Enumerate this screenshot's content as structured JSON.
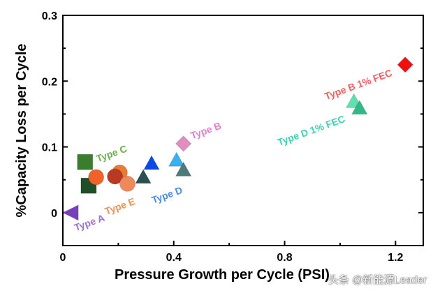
{
  "chart_data": {
    "type": "scatter",
    "title": "",
    "xlabel": "Pressure Growth per Cycle (PSI)",
    "ylabel": "%Capacity Loss per Cycle",
    "xlim": [
      0,
      1.3
    ],
    "ylim": [
      -0.05,
      0.3
    ],
    "xticks": [
      "0",
      "0.4",
      "0.8",
      "1.2"
    ],
    "xtick_values": [
      0,
      0.4,
      0.8,
      1.2
    ],
    "yticks": [
      "0",
      "0.1",
      "0.2",
      "0.3"
    ],
    "ytick_values": [
      0,
      0.1,
      0.2,
      0.3
    ],
    "grid": false,
    "points": [
      {
        "group": "Type A",
        "marker": "triangle-left",
        "color": "#7a3fc0",
        "x": 0.028,
        "y": 0.0
      },
      {
        "group": "Type C",
        "marker": "square",
        "color": "#3a7d2c",
        "x": 0.08,
        "y": 0.077
      },
      {
        "group": "Type C",
        "marker": "square",
        "color": "#1f4f27",
        "x": 0.093,
        "y": 0.041
      },
      {
        "group": "Type E",
        "marker": "circle",
        "color": "#f0622a",
        "x": 0.12,
        "y": 0.054
      },
      {
        "group": "Type E",
        "marker": "circle",
        "color": "#ee7a30",
        "x": 0.205,
        "y": 0.061
      },
      {
        "group": "Type E",
        "marker": "circle",
        "color": "#b83a22",
        "x": 0.188,
        "y": 0.055
      },
      {
        "group": "Type E",
        "marker": "circle",
        "color": "#f0895a",
        "x": 0.233,
        "y": 0.044
      },
      {
        "group": "Type D",
        "marker": "triangle-up",
        "color": "#2a5050",
        "x": 0.29,
        "y": 0.054
      },
      {
        "group": "Type D",
        "marker": "triangle-up",
        "color": "#0a4be8",
        "x": 0.32,
        "y": 0.075
      },
      {
        "group": "Type D",
        "marker": "triangle-up",
        "color": "#3ab0ee",
        "x": 0.41,
        "y": 0.08
      },
      {
        "group": "Type D",
        "marker": "triangle-up",
        "color": "#4f7a7a",
        "x": 0.435,
        "y": 0.065
      },
      {
        "group": "Type B",
        "marker": "diamond",
        "color": "#e38cc0",
        "x": 0.435,
        "y": 0.105
      },
      {
        "group": "Type D 1% FEC",
        "marker": "triangle-up",
        "color": "#5fe0b0",
        "x": 1.05,
        "y": 0.169
      },
      {
        "group": "Type D 1% FEC",
        "marker": "triangle-up",
        "color": "#2fb888",
        "x": 1.07,
        "y": 0.159
      },
      {
        "group": "Type B 1% FEC",
        "marker": "diamond",
        "color": "#f01010",
        "x": 1.235,
        "y": 0.225
      }
    ],
    "annotations": [
      {
        "text": "Type A",
        "color": "#a070d0",
        "x": 0.1,
        "y": -0.02
      },
      {
        "text": "Type C",
        "color": "#6ab04c",
        "x": 0.18,
        "y": 0.085
      },
      {
        "text": "Type E",
        "color": "#e8925a",
        "x": 0.21,
        "y": 0.005
      },
      {
        "text": "Type D",
        "color": "#4a8ae8",
        "x": 0.38,
        "y": 0.022
      },
      {
        "text": "Type B",
        "color": "#e080c8",
        "x": 0.52,
        "y": 0.12
      },
      {
        "text": "Type D 1% FEC",
        "color": "#40d0b0",
        "x": 0.9,
        "y": 0.12
      },
      {
        "text": "Type B 1% FEC",
        "color": "#f06060",
        "x": 1.07,
        "y": 0.19
      }
    ]
  },
  "watermark": "头条 @新能源Leader"
}
